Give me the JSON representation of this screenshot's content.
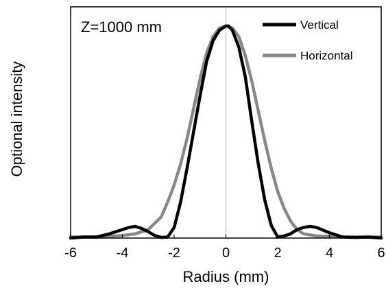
{
  "chart_data": {
    "type": "line",
    "title": "",
    "xlabel": "Radius (mm)",
    "ylabel": "Optional intensity",
    "annotation": "Z=1000 mm",
    "xlim": [
      -6,
      6
    ],
    "ylim": [
      0,
      1
    ],
    "x_ticks": [
      "-6",
      "-4",
      "-2",
      "0",
      "2",
      "4",
      "6"
    ],
    "grid": false,
    "legend_position": "top-right",
    "center_line_color": "#c8c8c8",
    "series": [
      {
        "name": "Vertical",
        "color": "#000000",
        "x": [
          -6,
          -5.5,
          -5,
          -4.5,
          -4,
          -3.75,
          -3.5,
          -3.25,
          -3,
          -2.75,
          -2.5,
          -2.25,
          -2,
          -1.75,
          -1.5,
          -1.25,
          -1,
          -0.75,
          -0.5,
          -0.25,
          0,
          0.1,
          0.25,
          0.5,
          0.75,
          1,
          1.25,
          1.5,
          1.75,
          2,
          2.25,
          2.5,
          2.75,
          3,
          3.25,
          3.5,
          4,
          4.5,
          5,
          5.5,
          6
        ],
        "y": [
          0.0,
          0.005,
          0.005,
          0.02,
          0.04,
          0.05,
          0.055,
          0.045,
          0.03,
          0.012,
          0.003,
          0.005,
          0.05,
          0.17,
          0.33,
          0.5,
          0.67,
          0.83,
          0.93,
          0.98,
          1.0,
          1.0,
          0.98,
          0.9,
          0.76,
          0.55,
          0.35,
          0.18,
          0.06,
          0.005,
          0.01,
          0.02,
          0.04,
          0.05,
          0.055,
          0.05,
          0.025,
          0.005,
          0.003,
          0.005,
          0.0
        ]
      },
      {
        "name": "Horizontal",
        "color": "#888888",
        "x": [
          -6,
          -5.5,
          -5,
          -4.5,
          -4,
          -3.5,
          -3,
          -2.5,
          -2.25,
          -2,
          -1.75,
          -1.5,
          -1.25,
          -1,
          -0.75,
          -0.5,
          -0.25,
          0,
          0.25,
          0.5,
          0.75,
          1,
          1.25,
          1.5,
          1.75,
          2,
          2.25,
          2.5,
          2.75,
          3,
          3.5,
          4,
          4.5,
          5,
          5.5,
          6
        ],
        "y": [
          0.005,
          0.005,
          0.005,
          0.008,
          0.012,
          0.02,
          0.04,
          0.1,
          0.17,
          0.25,
          0.35,
          0.47,
          0.61,
          0.75,
          0.87,
          0.95,
          0.99,
          1.0,
          0.99,
          0.95,
          0.86,
          0.74,
          0.6,
          0.46,
          0.33,
          0.22,
          0.14,
          0.08,
          0.04,
          0.02,
          0.01,
          0.008,
          0.005,
          0.005,
          0.005,
          0.005
        ]
      }
    ]
  }
}
